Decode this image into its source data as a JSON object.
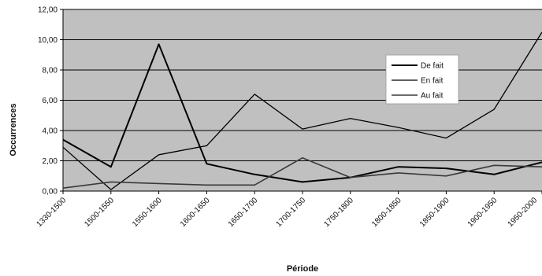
{
  "chart_data": {
    "type": "line",
    "title": "",
    "xlabel": "Période",
    "ylabel": "Occurrences",
    "ylim": [
      0,
      12
    ],
    "y_ticks": [
      "0,00",
      "2,00",
      "4,00",
      "6,00",
      "8,00",
      "10,00",
      "12,00"
    ],
    "y_tick_values": [
      0,
      2,
      4,
      6,
      8,
      10,
      12
    ],
    "categories": [
      "1330-1500",
      "1500-1550",
      "1550-1600",
      "1600-1650",
      "1650-1700",
      "1700-1750",
      "1750-1800",
      "1800-1850",
      "1850-1900",
      "1900-1950",
      "1950-2000"
    ],
    "grid": "horizontal",
    "plot_background": "#c0c0c0",
    "legend_position": "right",
    "series": [
      {
        "name": "De fait",
        "color": "#000000",
        "width": 2.0,
        "values": [
          3.4,
          1.6,
          9.7,
          1.8,
          1.1,
          0.6,
          0.9,
          1.6,
          1.5,
          1.1,
          1.9
        ]
      },
      {
        "name": "En fait",
        "color": "#000000",
        "width": 1.3,
        "values": [
          2.9,
          0.1,
          2.4,
          3.0,
          6.4,
          4.1,
          4.8,
          4.2,
          3.5,
          5.4,
          10.5
        ]
      },
      {
        "name": "Au fait",
        "color": "#3a3a3a",
        "width": 1.6,
        "values": [
          0.2,
          0.6,
          0.5,
          0.4,
          0.4,
          2.2,
          0.9,
          1.2,
          1.0,
          1.7,
          1.6
        ]
      }
    ]
  }
}
